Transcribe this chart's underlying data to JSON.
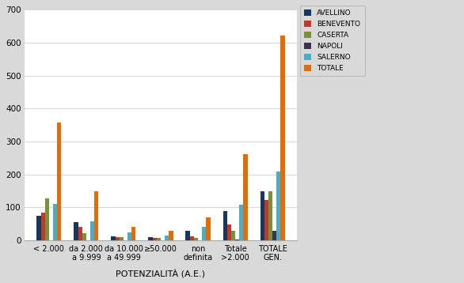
{
  "categories": [
    "< 2.000",
    "da 2.000\na 9.999",
    "da 10.000\na 49.999",
    "≥50.000",
    "non\ndefinita",
    "Totale\n>2.000",
    "TOTALE\nGEN."
  ],
  "series": {
    "AVELLINO": [
      75,
      55,
      13,
      10,
      28,
      88,
      150
    ],
    "BENEVENTO": [
      85,
      42,
      10,
      8,
      12,
      48,
      122
    ],
    "CASERTA": [
      128,
      22,
      10,
      8,
      8,
      30,
      148
    ],
    "NAPOLI": [
      1,
      1,
      1,
      1,
      1,
      3,
      28
    ],
    "SALERNO": [
      110,
      57,
      23,
      14,
      40,
      108,
      208
    ],
    "TOTALE": [
      358,
      148,
      40,
      30,
      70,
      263,
      622
    ]
  },
  "colors": {
    "AVELLINO": "#17375E",
    "BENEVENTO": "#C0392B",
    "CASERTA": "#76933C",
    "NAPOLI": "#403151",
    "SALERNO": "#4BACC6",
    "TOTALE": "#E36C09"
  },
  "ylim": [
    0,
    700
  ],
  "yticks": [
    0,
    100,
    200,
    300,
    400,
    500,
    600,
    700
  ],
  "xlabel": "POTENZIALITÀ (A.E.)",
  "plot_bg": "#FFFFFF",
  "fig_bg": "#D9D9D9",
  "grid_color": "#D9D9D9",
  "bar_width": 0.11
}
